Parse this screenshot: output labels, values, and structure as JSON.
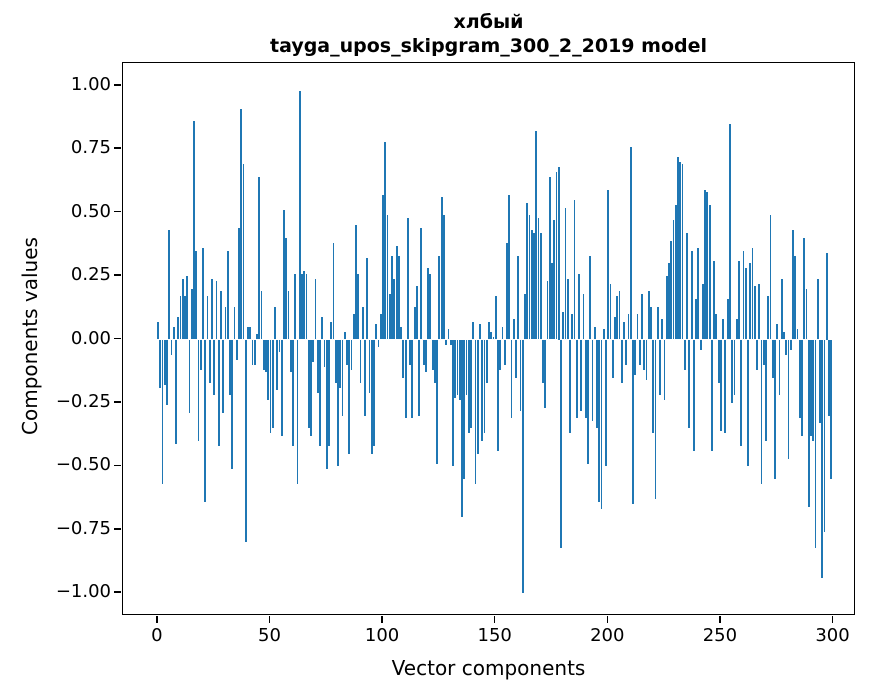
{
  "figure": {
    "title_line1": "хлбый",
    "title_line2": "tayga_upos_skipgram_300_2_2019 model"
  },
  "chart_data": {
    "type": "bar",
    "title": "хлбый",
    "subtitle": "tayga_upos_skipgram_300_2_2019 model",
    "xlabel": "Vector components",
    "ylabel": "Components values",
    "bar_color": "#1f77b4",
    "grid": false,
    "legend": "none",
    "xlim": [
      -15.5,
      310
    ],
    "ylim": [
      -1.09,
      1.09
    ],
    "bar_width": 0.8,
    "x_start": 0,
    "x_ticks": [
      0,
      50,
      100,
      150,
      200,
      250,
      300
    ],
    "x_tick_labels": [
      "0",
      "50",
      "100",
      "150",
      "200",
      "250",
      "300"
    ],
    "y_ticks": [
      1.0,
      0.75,
      0.5,
      0.25,
      0.0,
      -0.25,
      -0.5,
      -0.75,
      -1.0
    ],
    "y_tick_labels": [
      "1.00",
      "0.75",
      "0.50",
      "0.25",
      "0.00",
      "−0.25",
      "−0.50",
      "−0.75",
      "−1.00"
    ],
    "values": [
      0.07,
      -0.19,
      -0.57,
      -0.18,
      -0.26,
      0.43,
      -0.06,
      0.05,
      -0.41,
      0.09,
      0.17,
      0.24,
      0.17,
      0.25,
      -0.29,
      0.2,
      0.86,
      0.35,
      -0.4,
      -0.12,
      0.36,
      -0.64,
      0.17,
      -0.17,
      0.24,
      -0.22,
      0.23,
      -0.42,
      0.19,
      -0.29,
      0.13,
      0.35,
      -0.22,
      -0.51,
      0.13,
      -0.08,
      0.44,
      0.91,
      0.69,
      -0.8,
      0.05,
      0.05,
      -0.1,
      -0.1,
      0.02,
      0.64,
      0.19,
      -0.12,
      -0.13,
      -0.24,
      -0.37,
      -0.35,
      0.13,
      -0.2,
      -0.05,
      -0.38,
      0.51,
      0.4,
      0.19,
      -0.13,
      -0.42,
      0.26,
      -0.57,
      0.98,
      0.26,
      0.27,
      0.26,
      -0.35,
      -0.38,
      -0.09,
      0.24,
      -0.21,
      -0.42,
      0.09,
      -0.11,
      -0.51,
      -0.42,
      0.07,
      0.38,
      -0.17,
      -0.5,
      -0.19,
      -0.3,
      0.03,
      -0.1,
      -0.45,
      -0.12,
      0.1,
      0.45,
      0.26,
      -0.17,
      0.13,
      -0.3,
      0.32,
      -0.21,
      -0.45,
      -0.42,
      0.06,
      -0.03,
      0.1,
      0.57,
      0.78,
      0.49,
      0.18,
      0.33,
      0.24,
      0.37,
      0.33,
      0.05,
      -0.15,
      -0.31,
      0.48,
      -0.1,
      -0.31,
      0.13,
      0.21,
      -0.3,
      0.44,
      -0.1,
      -0.13,
      0.28,
      0.26,
      -0.12,
      -0.17,
      -0.49,
      0.33,
      0.56,
      0.49,
      -0.02,
      0.04,
      -0.02,
      -0.5,
      -0.23,
      -0.22,
      -0.24,
      -0.7,
      -0.55,
      -0.22,
      -0.37,
      -0.35,
      0.07,
      -0.57,
      -0.45,
      0.06,
      -0.4,
      -0.37,
      -0.17,
      0.07,
      0.03,
      0.01,
      0.17,
      -0.44,
      -0.12,
      0.05,
      -0.1,
      0.38,
      0.57,
      -0.31,
      0.08,
      -0.15,
      0.33,
      -0.28,
      -1.0,
      0.18,
      0.54,
      0.49,
      0.43,
      0.42,
      0.82,
      0.48,
      0.42,
      -0.17,
      -0.27,
      0.23,
      0.64,
      0.3,
      0.47,
      0.66,
      0.68,
      -0.82,
      0.11,
      0.52,
      0.24,
      -0.37,
      0.1,
      0.55,
      -0.31,
      0.26,
      -0.28,
      0.18,
      -0.31,
      -0.49,
      0.33,
      -0.32,
      0.05,
      -0.35,
      -0.64,
      -0.67,
      0.04,
      -0.5,
      0.59,
      0.22,
      -0.15,
      0.09,
      0.17,
      0.19,
      -0.17,
      0.07,
      -0.1,
      0.1,
      0.76,
      -0.65,
      -0.14,
      0.1,
      -0.1,
      0.18,
      -0.12,
      -0.16,
      0.19,
      0.13,
      -0.37,
      -0.63,
      0.13,
      -0.22,
      0.08,
      -0.24,
      0.25,
      0.3,
      0.39,
      0.47,
      0.53,
      0.72,
      0.7,
      0.69,
      -0.12,
      0.42,
      -0.35,
      0.35,
      -0.44,
      0.16,
      0.36,
      -0.04,
      0.22,
      0.59,
      0.58,
      0.53,
      -0.44,
      0.31,
      0.1,
      -0.17,
      -0.36,
      0.08,
      -0.37,
      0.16,
      0.85,
      -0.25,
      -0.22,
      0.08,
      0.31,
      -0.42,
      0.35,
      0.28,
      -0.5,
      0.3,
      0.36,
      0.21,
      -0.12,
      0.22,
      -0.57,
      -0.1,
      -0.4,
      0.17,
      0.49,
      -0.15,
      -0.55,
      0.06,
      -0.22,
      0.24,
      0.03,
      -0.06,
      -0.47,
      -0.04,
      0.43,
      0.33,
      0.04,
      -0.31,
      -0.38,
      0.4,
      0.2,
      -0.66,
      -0.38,
      -0.4,
      -0.82,
      0.24,
      -0.33,
      -0.94,
      -0.76,
      0.34,
      -0.3,
      -0.55
    ]
  }
}
